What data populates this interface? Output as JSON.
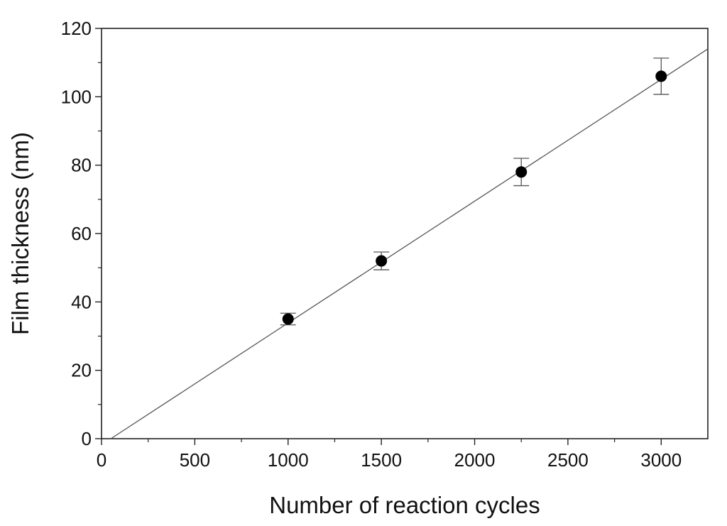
{
  "chart_data": {
    "type": "scatter",
    "title": "",
    "xlabel": "Number of reaction cycles",
    "ylabel": "Film thickness (nm)",
    "xlim": [
      0,
      3250
    ],
    "ylim": [
      0,
      120
    ],
    "x_ticks": [
      "0",
      "500",
      "1000",
      "1500",
      "2000",
      "2500",
      "3000"
    ],
    "y_ticks": [
      "0",
      "20",
      "40",
      "60",
      "80",
      "100",
      "120"
    ],
    "grid": false,
    "legend": "none",
    "series": [
      {
        "marker": "filled-circle",
        "color": "#000000",
        "x": [
          1000,
          1500,
          2250,
          3000
        ],
        "y": [
          35,
          52,
          78,
          106
        ],
        "error": [
          1.7,
          2.6,
          4.0,
          5.3
        ]
      }
    ],
    "fit_line": {
      "color": "#555555",
      "points": [
        [
          50,
          0
        ],
        [
          3250,
          114
        ]
      ]
    }
  }
}
